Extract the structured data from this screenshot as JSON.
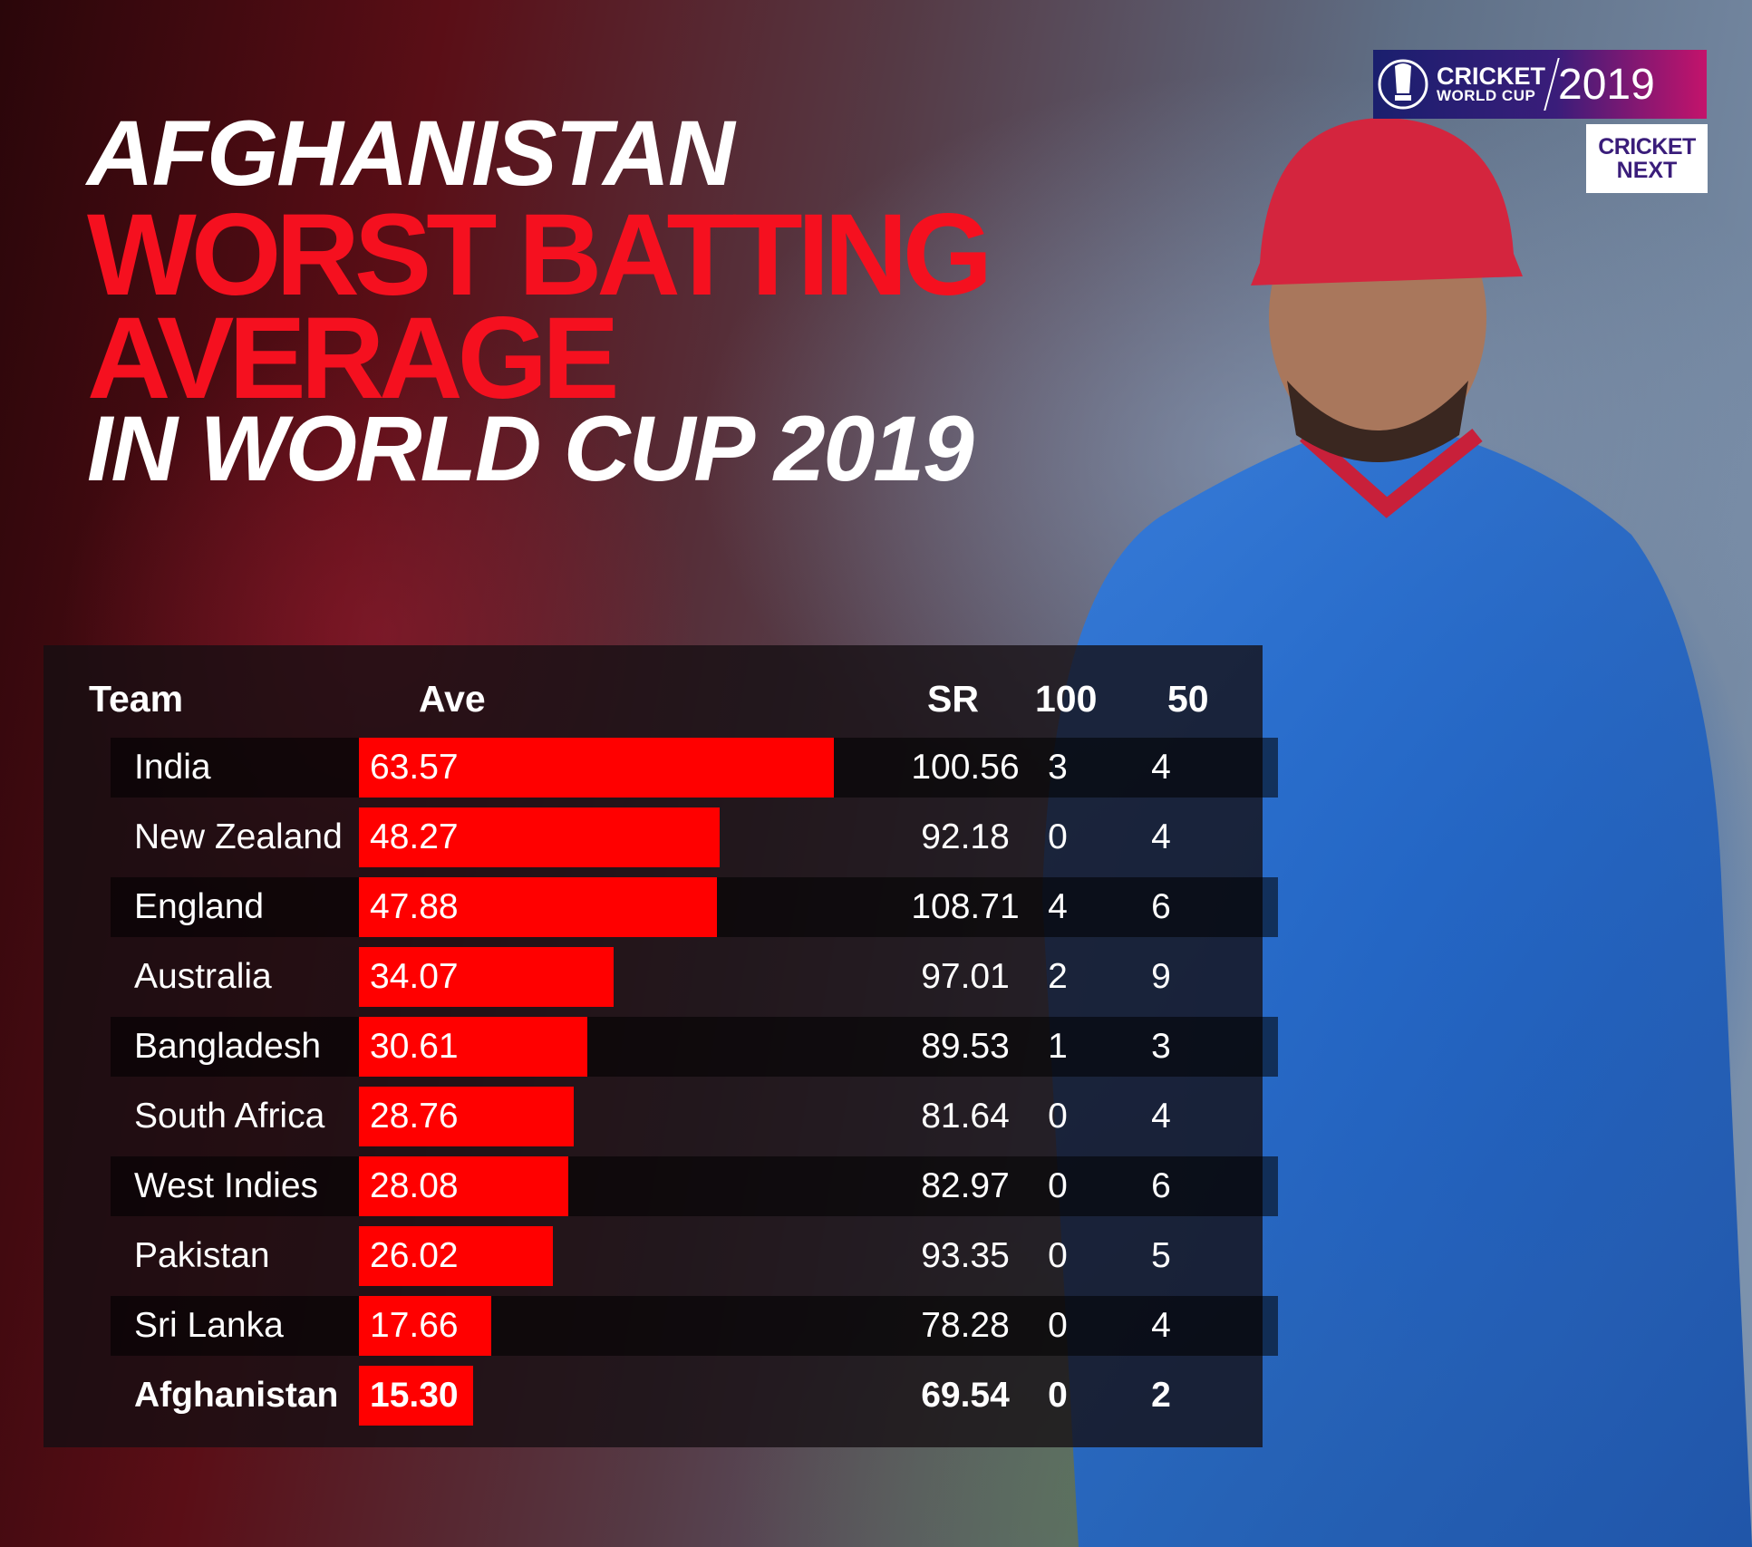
{
  "title": {
    "line1": "AFGHANISTAN",
    "line2": "WORST BATTING",
    "line3": "AVERAGE",
    "line4": "IN WORLD CUP 2019"
  },
  "logos": {
    "cwc": {
      "cricket": "CRICKET",
      "world_cup": "WORLD CUP",
      "year": "2019"
    },
    "cricketnext": {
      "line1": "CRICKET",
      "line2": "NEXT"
    }
  },
  "colors": {
    "accent": "#ff0000",
    "title_red": "#f5101f",
    "panel": "#140e12"
  },
  "chart_data": {
    "type": "table",
    "columns": [
      "Team",
      "Ave",
      "SR",
      "100",
      "50"
    ],
    "bar_column": "Ave",
    "rows": [
      {
        "team": "India",
        "ave": "63.57",
        "sr": "100.56",
        "hundreds": "3",
        "fifties": "4"
      },
      {
        "team": "New Zealand",
        "ave": "48.27",
        "sr": "92.18",
        "hundreds": "0",
        "fifties": "4"
      },
      {
        "team": "England",
        "ave": "47.88",
        "sr": "108.71",
        "hundreds": "4",
        "fifties": "6"
      },
      {
        "team": "Australia",
        "ave": "34.07",
        "sr": "97.01",
        "hundreds": "2",
        "fifties": "9"
      },
      {
        "team": "Bangladesh",
        "ave": "30.61",
        "sr": "89.53",
        "hundreds": "1",
        "fifties": "3"
      },
      {
        "team": "South Africa",
        "ave": "28.76",
        "sr": "81.64",
        "hundreds": "0",
        "fifties": "4"
      },
      {
        "team": "West Indies",
        "ave": "28.08",
        "sr": "82.97",
        "hundreds": "0",
        "fifties": "6"
      },
      {
        "team": "Pakistan",
        "ave": "26.02",
        "sr": "93.35",
        "hundreds": "0",
        "fifties": "5"
      },
      {
        "team": "Sri Lanka",
        "ave": "17.66",
        "sr": "78.28",
        "hundreds": "0",
        "fifties": "4"
      },
      {
        "team": "Afghanistan",
        "ave": "15.30",
        "sr": "69.54",
        "hundreds": "0",
        "fifties": "2",
        "highlight": true
      }
    ]
  }
}
